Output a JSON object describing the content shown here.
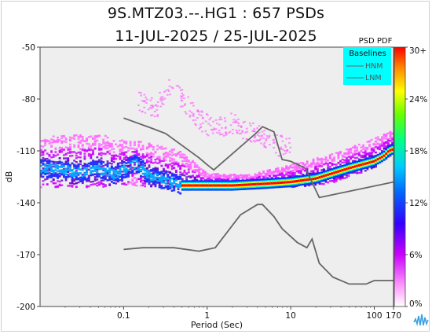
{
  "header": {
    "title_line1": "9S.MTZ03.--.HG1 : 657 PSDs",
    "title_line2": "11-JUL-2025 / 25-JUL-2025"
  },
  "chart_data": {
    "type": "heatmap",
    "title": "9S.MTZ03.--.HG1 : 657 PSDs",
    "subtitle": "11-JUL-2025 / 25-JUL-2025",
    "xlabel": "Period (Sec)",
    "ylabel": "dB",
    "x_scale": "log",
    "xlim": [
      0.01,
      170
    ],
    "ylim": [
      -200,
      -50
    ],
    "x_ticks": [
      0.1,
      1,
      10,
      100,
      170
    ],
    "x_tick_labels": [
      "0.1",
      "1",
      "10",
      "100",
      "170"
    ],
    "y_ticks": [
      -200,
      -170,
      -140,
      -110,
      -80,
      -50
    ],
    "y_tick_labels": [
      "-200",
      "-170",
      "-140",
      "-110",
      "-80",
      "-50"
    ],
    "grid": false,
    "background_color": "#eeeeee",
    "colorbar": {
      "title": "PSD PDF",
      "tick_labels": [
        "0%",
        "6%",
        "12%",
        "18%",
        "24%",
        "30+"
      ],
      "values": [
        0,
        6,
        12,
        18,
        24,
        30
      ],
      "colors": [
        "#ffffff",
        "#ff66ff",
        "#9900cc",
        "#0000ff",
        "#00ccff",
        "#00ff88",
        "#66ff00",
        "#ffff00",
        "#ff8800",
        "#ff0000"
      ]
    },
    "legend": {
      "title": "Baselines",
      "placement": "top-right",
      "background": "#00ffff",
      "items": [
        "HNM",
        "LNM"
      ]
    },
    "baselines": [
      {
        "name": "HNM",
        "color": "#666666",
        "points": [
          [
            0.1,
            -91
          ],
          [
            0.22,
            -97
          ],
          [
            0.32,
            -100
          ],
          [
            0.8,
            -114
          ],
          [
            1,
            -118
          ],
          [
            1.2,
            -121
          ],
          [
            3.8,
            -100
          ],
          [
            4.6,
            -96
          ],
          [
            6.3,
            -99
          ],
          [
            7.9,
            -115
          ],
          [
            10,
            -116
          ],
          [
            15,
            -120
          ],
          [
            22,
            -137
          ],
          [
            170,
            -128
          ]
        ]
      },
      {
        "name": "LNM",
        "color": "#666666",
        "points": [
          [
            0.1,
            -167
          ],
          [
            0.17,
            -166
          ],
          [
            0.4,
            -166
          ],
          [
            0.8,
            -168
          ],
          [
            1.25,
            -166
          ],
          [
            2.5,
            -147
          ],
          [
            4,
            -141
          ],
          [
            4.6,
            -141
          ],
          [
            6.3,
            -148
          ],
          [
            7.9,
            -155
          ],
          [
            12,
            -163
          ],
          [
            15.6,
            -166
          ],
          [
            18,
            -161
          ],
          [
            22,
            -175
          ],
          [
            32,
            -183
          ],
          [
            50,
            -187
          ],
          [
            80,
            -187
          ],
          [
            100,
            -185
          ],
          [
            170,
            -185
          ]
        ]
      }
    ],
    "psd_mode": [
      [
        0.01,
        -120
      ],
      [
        0.02,
        -121
      ],
      [
        0.03,
        -123
      ],
      [
        0.05,
        -120
      ],
      [
        0.08,
        -124
      ],
      [
        0.1,
        -121
      ],
      [
        0.14,
        -117
      ],
      [
        0.2,
        -124
      ],
      [
        0.3,
        -127
      ],
      [
        0.5,
        -130
      ],
      [
        1,
        -130
      ],
      [
        2,
        -130
      ],
      [
        5,
        -129
      ],
      [
        10,
        -128
      ],
      [
        20,
        -126
      ],
      [
        50,
        -120
      ],
      [
        100,
        -116
      ],
      [
        130,
        -113
      ],
      [
        150,
        -110
      ],
      [
        170,
        -109
      ]
    ],
    "psd_band_low": [
      [
        0.01,
        -131
      ],
      [
        0.05,
        -131
      ],
      [
        0.1,
        -130
      ],
      [
        0.3,
        -131
      ],
      [
        1,
        -132
      ],
      [
        5,
        -131
      ],
      [
        10,
        -131
      ],
      [
        30,
        -129
      ],
      [
        100,
        -120
      ],
      [
        170,
        -112
      ]
    ],
    "psd_band_high": [
      [
        0.01,
        -102
      ],
      [
        0.05,
        -100
      ],
      [
        0.1,
        -104
      ],
      [
        0.2,
        -105
      ],
      [
        0.5,
        -110
      ],
      [
        1,
        -123
      ],
      [
        3,
        -124
      ],
      [
        10,
        -118
      ],
      [
        30,
        -112
      ],
      [
        100,
        -103
      ],
      [
        170,
        -98
      ]
    ],
    "psd_scatter_band": [
      [
        0.15,
        -81
      ],
      [
        0.25,
        -85
      ],
      [
        0.35,
        -74
      ],
      [
        0.45,
        -77
      ],
      [
        0.8,
        -92
      ],
      [
        1.2,
        -97
      ],
      [
        2,
        -94
      ],
      [
        3,
        -98
      ],
      [
        5,
        -103
      ],
      [
        7,
        -107
      ],
      [
        10,
        -106
      ]
    ]
  }
}
